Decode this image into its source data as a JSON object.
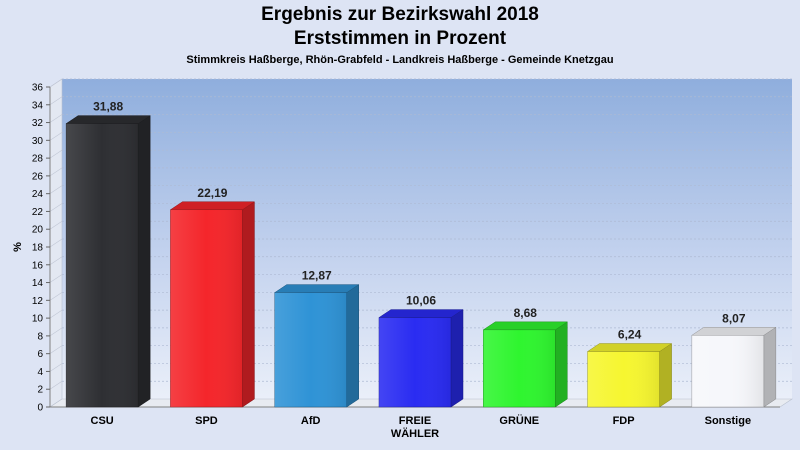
{
  "title": "Ergebnis zur Bezirkswahl 2018",
  "subtitle": "Erststimmen in Prozent",
  "subtitle2": "Stimmkreis Haßberge, Rhön-Grabfeld - Landkreis Haßberge - Gemeinde Knetzgau",
  "chart_data": {
    "type": "bar",
    "title": "Ergebnis zur Bezirkswahl 2018",
    "subtitle": "Erststimmen in Prozent",
    "ylabel": "%",
    "xlabel": "",
    "ylim": [
      0,
      36
    ],
    "yticks": [
      "0",
      "2",
      "4",
      "6",
      "8",
      "10",
      "12",
      "14",
      "16",
      "18",
      "20",
      "22",
      "24",
      "26",
      "28",
      "30",
      "32",
      "34",
      "36"
    ],
    "grid": true,
    "categories": [
      {
        "lines": [
          "CSU"
        ]
      },
      {
        "lines": [
          "SPD"
        ]
      },
      {
        "lines": [
          "AfD"
        ]
      },
      {
        "lines": [
          "FREIE",
          "WÄHLER"
        ]
      },
      {
        "lines": [
          "GRÜNE"
        ]
      },
      {
        "lines": [
          "FDP"
        ]
      },
      {
        "lines": [
          "Sonstige"
        ]
      }
    ],
    "values": [
      31.88,
      22.19,
      12.87,
      10.06,
      8.68,
      6.24,
      8.07
    ],
    "value_labels": [
      "31,88",
      "22,19",
      "12,87",
      "10,06",
      "8,68",
      "6,24",
      "8,07"
    ],
    "colors": [
      "#2e2f33",
      "#f4262b",
      "#2f93d6",
      "#2a2cf2",
      "#2ff52f",
      "#f6f630",
      "#f6f7fb"
    ]
  }
}
